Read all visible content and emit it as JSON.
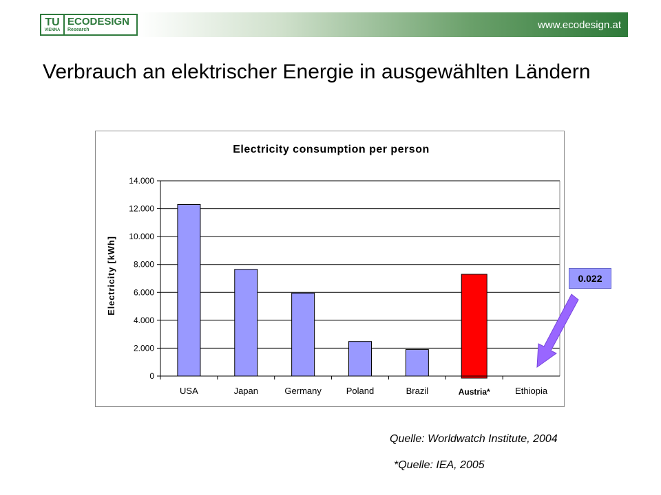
{
  "header": {
    "logo_tu": "TU",
    "logo_vienna": "VIENNA",
    "logo_brand": "ECODESIGN",
    "logo_sub": "Research",
    "url": "www.ecodesign.at"
  },
  "slide": {
    "title": "Verbrauch an elektrischer Energie in ausgewählten Ländern"
  },
  "annotation": {
    "label": "0.022",
    "arrow_color": "#9966ff"
  },
  "sources": {
    "primary": "Quelle: Worldwatch Institute, 2004",
    "secondary": "*Quelle: IEA, 2005"
  },
  "colors": {
    "bar_default": "#9999ff",
    "bar_highlight": "#ff0000",
    "brand_green": "#2e7a3c"
  },
  "chart_data": {
    "type": "bar",
    "title": "Electricity consumption per person",
    "xlabel": "",
    "ylabel": "Electricity [kWh]",
    "ylim": [
      0,
      14000
    ],
    "yticks": [
      0,
      2000,
      4000,
      6000,
      8000,
      10000,
      12000,
      14000
    ],
    "ytick_labels": [
      "0",
      "2.000",
      "4.000",
      "6.000",
      "8.000",
      "10.000",
      "12.000",
      "14.000"
    ],
    "categories": [
      "USA",
      "Japan",
      "Germany",
      "Poland",
      "Brazil",
      "Austria*",
      "Ethiopia"
    ],
    "values": [
      12300,
      7650,
      5950,
      2480,
      1900,
      7300,
      22
    ],
    "highlight_index": 5,
    "grid": true,
    "legend": "none"
  }
}
